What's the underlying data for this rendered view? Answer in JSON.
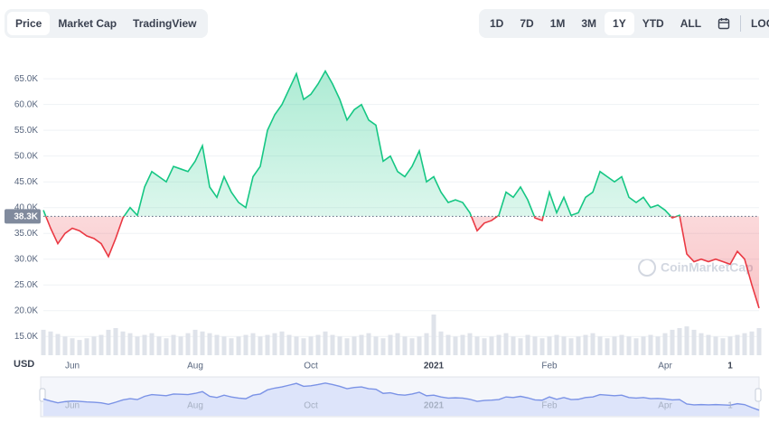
{
  "toolbar": {
    "tabs": [
      "Price",
      "Market Cap",
      "TradingView"
    ],
    "active_tab": 0,
    "ranges": [
      "1D",
      "7D",
      "1M",
      "3M",
      "1Y",
      "YTD",
      "ALL"
    ],
    "active_range": 4,
    "log": "LOG"
  },
  "watermark": "CoinMarketCap",
  "chart_data": {
    "type": "line",
    "currency": "USD",
    "reference": {
      "value": 38300,
      "label": "38.3K"
    },
    "up_color": "#16c784",
    "down_color": "#ea3943",
    "nav_color": "#7b93e6",
    "categories": [
      null,
      null,
      null,
      null,
      "Jun",
      null,
      null,
      null,
      null,
      null,
      null,
      null,
      null,
      null,
      null,
      null,
      null,
      null,
      null,
      null,
      null,
      "Aug",
      null,
      null,
      null,
      null,
      null,
      null,
      null,
      null,
      null,
      null,
      null,
      null,
      null,
      null,
      null,
      "Oct",
      null,
      null,
      null,
      null,
      null,
      null,
      null,
      null,
      null,
      null,
      null,
      null,
      null,
      null,
      null,
      null,
      "2021",
      null,
      null,
      null,
      null,
      null,
      null,
      null,
      null,
      null,
      null,
      null,
      null,
      null,
      null,
      null,
      "Feb",
      null,
      null,
      null,
      null,
      null,
      null,
      null,
      null,
      null,
      null,
      null,
      null,
      null,
      null,
      null,
      "Apr",
      null,
      null,
      null,
      null,
      null,
      null,
      null,
      null,
      "1",
      null,
      null,
      null,
      null
    ],
    "series": [
      {
        "name": "Price",
        "values": [
          39500,
          36000,
          33000,
          35000,
          36000,
          35500,
          34500,
          34000,
          33000,
          30500,
          34000,
          38000,
          40000,
          38500,
          44000,
          47000,
          46000,
          45000,
          48000,
          47500,
          47000,
          49000,
          52000,
          44000,
          42000,
          46000,
          43000,
          41000,
          40000,
          46000,
          48000,
          55000,
          58000,
          60000,
          63000,
          66000,
          61000,
          62000,
          64000,
          66500,
          64000,
          61000,
          57000,
          59000,
          60000,
          57000,
          56000,
          49000,
          50000,
          47000,
          46000,
          48000,
          51000,
          45000,
          46000,
          43000,
          41000,
          41500,
          41000,
          39000,
          35500,
          37000,
          37500,
          38500,
          43000,
          42000,
          44000,
          41500,
          38000,
          37500,
          43000,
          39000,
          42000,
          38500,
          39000,
          42000,
          43000,
          47000,
          46000,
          45000,
          46000,
          42000,
          41000,
          42000,
          40000,
          40500,
          39500,
          38000,
          38500,
          31000,
          29500,
          30000,
          29500,
          30000,
          29500,
          29000,
          31500,
          30000,
          25000,
          20500
        ]
      },
      {
        "name": "Volume",
        "values": [
          30,
          28,
          25,
          22,
          20,
          18,
          20,
          22,
          24,
          30,
          32,
          28,
          26,
          22,
          24,
          26,
          22,
          20,
          24,
          22,
          26,
          30,
          28,
          26,
          24,
          22,
          20,
          22,
          24,
          26,
          22,
          24,
          26,
          28,
          24,
          22,
          20,
          22,
          24,
          28,
          24,
          22,
          20,
          22,
          24,
          26,
          22,
          20,
          24,
          26,
          22,
          20,
          22,
          26,
          48,
          28,
          24,
          22,
          24,
          26,
          22,
          20,
          22,
          24,
          26,
          22,
          20,
          24,
          22,
          20,
          22,
          24,
          22,
          20,
          22,
          24,
          26,
          22,
          20,
          22,
          24,
          22,
          20,
          22,
          24,
          22,
          26,
          30,
          32,
          34,
          30,
          26,
          24,
          22,
          20,
          22,
          24,
          26,
          28,
          32
        ]
      }
    ],
    "ylim": [
      11000,
      72400
    ],
    "yticks": [
      {
        "value": 15000,
        "label": "15.0K"
      },
      {
        "value": 20000,
        "label": "20.0K"
      },
      {
        "value": 25000,
        "label": "25.0K"
      },
      {
        "value": 30000,
        "label": "30.0K"
      },
      {
        "value": 35000,
        "label": "35.0K"
      },
      {
        "value": 40000,
        "label": "40.0K"
      },
      {
        "value": 45000,
        "label": "45.0K"
      },
      {
        "value": 50000,
        "label": "50.0K"
      },
      {
        "value": 55000,
        "label": "55.0K"
      },
      {
        "value": 60000,
        "label": "60.0K"
      },
      {
        "value": 65000,
        "label": "65.0K"
      }
    ],
    "grid": true
  }
}
